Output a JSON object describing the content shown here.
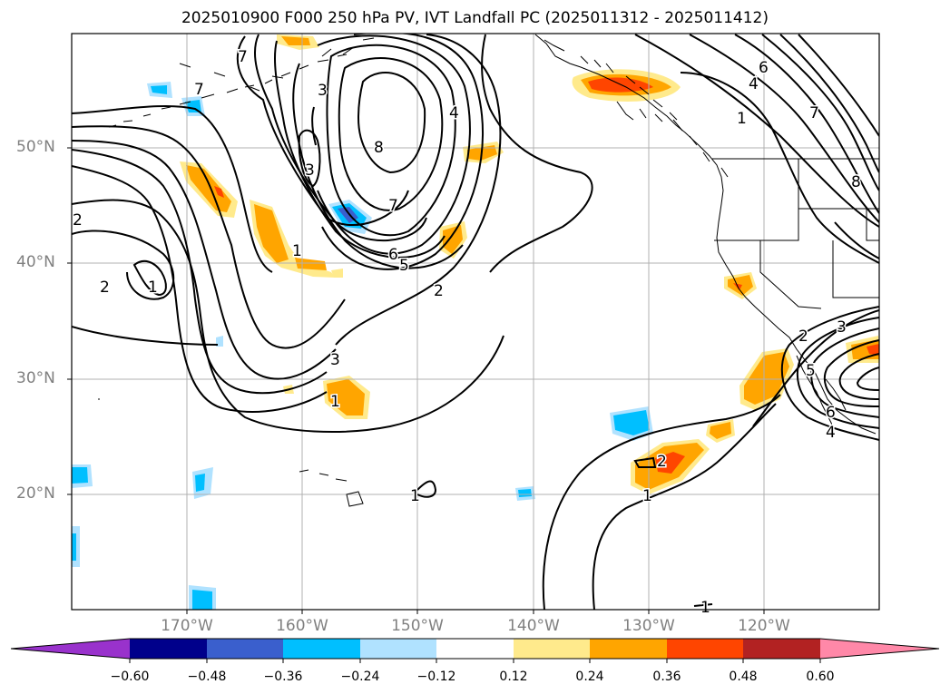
{
  "title": "2025010900 F000 250 hPa PV, IVT Landfall PC (2025011312 - 2025011412)",
  "lon_labels": [
    "170°W",
    "160°W",
    "150°W",
    "140°W",
    "130°W",
    "120°W"
  ],
  "lat_labels": [
    "50°N",
    "40°N",
    "30°N",
    "20°N"
  ],
  "colorbar": {
    "tick_labels": [
      "−0.60",
      "−0.48",
      "−0.36",
      "−0.24",
      "−0.12",
      "0.12",
      "0.24",
      "0.36",
      "0.48",
      "0.60"
    ],
    "colors": [
      "#9932cc",
      "#00008b",
      "#3a5fcd",
      "#00bfff",
      "#b0e2ff",
      "#ffffff",
      "#ffea8c",
      "#ffa500",
      "#ff4500",
      "#b22222",
      "#ff88a8"
    ]
  },
  "contour_labels": [
    "7",
    "7",
    "3",
    "3",
    "8",
    "7",
    "4",
    "6",
    "4",
    "1",
    "7",
    "8",
    "2",
    "1",
    "2",
    "1",
    "6",
    "5",
    "2",
    "3",
    "1",
    "2",
    "3",
    "5",
    "6",
    "4",
    "2",
    "1",
    "1",
    "1"
  ]
}
